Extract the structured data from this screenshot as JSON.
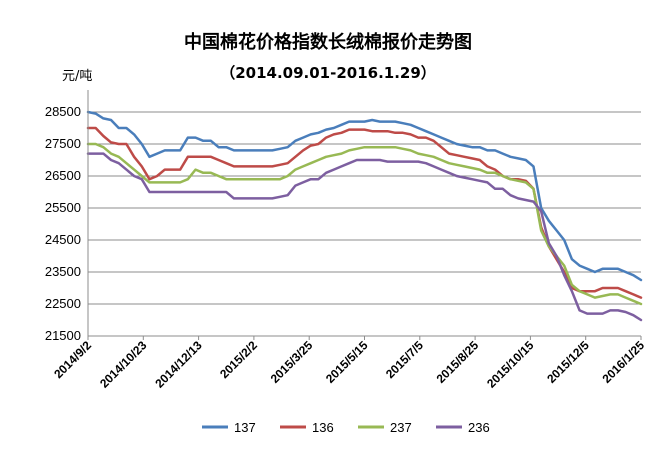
{
  "chart_data": {
    "type": "line",
    "title": "中国棉花价格指数长绒棉报价走势图",
    "subtitle": "（2014.09.01-2016.1.29）",
    "ylabel": "元/吨",
    "xlabel": "",
    "ylim": [
      21500,
      29000
    ],
    "yticks": [
      "28500",
      "27500",
      "26500",
      "25500",
      "24500",
      "23500",
      "22500",
      "21500"
    ],
    "xtick_labels": [
      "2014/9/2",
      "2014/10/23",
      "2014/12/13",
      "2015/2/2",
      "2015/3/25",
      "2015/5/15",
      "2015/7/5",
      "2015/8/25",
      "2015/10/15",
      "2015/12/5",
      "2016/1/25"
    ],
    "grid": true,
    "legend_position": "bottom",
    "series": [
      {
        "name": "137",
        "color": "#4a7ebb",
        "values": [
          28500,
          28450,
          28300,
          28250,
          28000,
          28000,
          27800,
          27500,
          27100,
          27200,
          27300,
          27300,
          27300,
          27700,
          27700,
          27600,
          27600,
          27400,
          27400,
          27300,
          27300,
          27300,
          27300,
          27300,
          27300,
          27350,
          27400,
          27600,
          27700,
          27800,
          27850,
          27950,
          28000,
          28100,
          28200,
          28200,
          28200,
          28250,
          28200,
          28200,
          28200,
          28150,
          28100,
          28000,
          27900,
          27800,
          27700,
          27600,
          27500,
          27450,
          27400,
          27400,
          27300,
          27300,
          27200,
          27100,
          27050,
          27000,
          26800,
          25500,
          25100,
          24800,
          24500,
          23900,
          23700,
          23600,
          23500,
          23600,
          23600,
          23600,
          23500,
          23400,
          23250
        ]
      },
      {
        "name": "136",
        "color": "#be4b48",
        "values": [
          28000,
          28000,
          27750,
          27550,
          27500,
          27500,
          27100,
          26800,
          26400,
          26500,
          26700,
          26700,
          26700,
          27100,
          27100,
          27100,
          27100,
          27000,
          26900,
          26800,
          26800,
          26800,
          26800,
          26800,
          26800,
          26850,
          26900,
          27100,
          27300,
          27450,
          27500,
          27700,
          27800,
          27850,
          27950,
          27950,
          27950,
          27900,
          27900,
          27900,
          27850,
          27850,
          27800,
          27700,
          27700,
          27600,
          27400,
          27200,
          27150,
          27100,
          27050,
          27000,
          26800,
          26700,
          26500,
          26400,
          26400,
          26350,
          26100,
          24900,
          24300,
          23900,
          23500,
          23000,
          22900,
          22900,
          22900,
          23000,
          23000,
          23000,
          22900,
          22800,
          22700
        ]
      },
      {
        "name": "237",
        "color": "#98b954",
        "values": [
          27500,
          27500,
          27400,
          27200,
          27100,
          26900,
          26700,
          26500,
          26300,
          26300,
          26300,
          26300,
          26300,
          26400,
          26700,
          26600,
          26600,
          26500,
          26400,
          26400,
          26400,
          26400,
          26400,
          26400,
          26400,
          26400,
          26500,
          26700,
          26800,
          26900,
          27000,
          27100,
          27150,
          27200,
          27300,
          27350,
          27400,
          27400,
          27400,
          27400,
          27400,
          27350,
          27300,
          27200,
          27150,
          27100,
          27000,
          26900,
          26850,
          26800,
          26750,
          26700,
          26600,
          26600,
          26500,
          26400,
          26350,
          26300,
          26100,
          24800,
          24300,
          24000,
          23700,
          23100,
          22900,
          22800,
          22700,
          22750,
          22800,
          22800,
          22700,
          22600,
          22500
        ]
      },
      {
        "name": "236",
        "color": "#7d5fa0",
        "values": [
          27200,
          27200,
          27200,
          27000,
          26900,
          26700,
          26500,
          26400,
          26000,
          26000,
          26000,
          26000,
          26000,
          26000,
          26000,
          26000,
          26000,
          26000,
          26000,
          25800,
          25800,
          25800,
          25800,
          25800,
          25800,
          25850,
          25900,
          26200,
          26300,
          26400,
          26400,
          26600,
          26700,
          26800,
          26900,
          27000,
          27000,
          27000,
          27000,
          26950,
          26950,
          26950,
          26950,
          26950,
          26900,
          26800,
          26700,
          26600,
          26500,
          26450,
          26400,
          26350,
          26300,
          26100,
          26100,
          25900,
          25800,
          25750,
          25700,
          25400,
          24400,
          24000,
          23400,
          22900,
          22300,
          22200,
          22200,
          22200,
          22300,
          22300,
          22250,
          22150,
          22000
        ]
      }
    ]
  }
}
